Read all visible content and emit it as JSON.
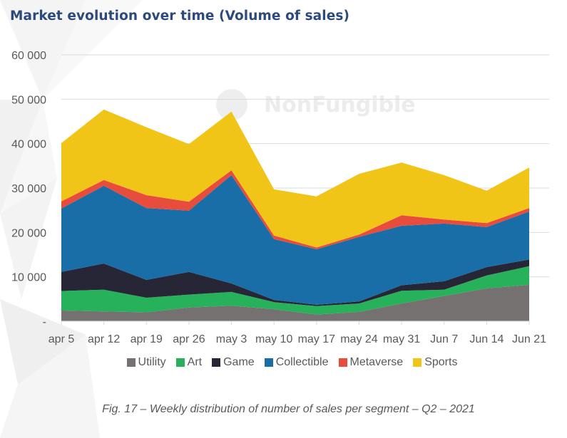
{
  "title": "Market evolution over time (Volume of sales)",
  "watermark": "NonFungible",
  "caption": "Fig. 17 – Weekly distribution of number of sales per segment – Q2 – 2021",
  "chart_data": {
    "type": "area",
    "stacked": true,
    "title": "Market evolution over time (Volume of sales)",
    "xlabel": "",
    "ylabel": "",
    "ylim": [
      0,
      60000
    ],
    "yticks": [
      0,
      10000,
      20000,
      30000,
      40000,
      50000,
      60000
    ],
    "ytick_labels": [
      "-",
      "10 000",
      "20 000",
      "30 000",
      "40 000",
      "50 000",
      "60 000"
    ],
    "grid": true,
    "legend_position": "bottom",
    "categories": [
      "apr 5",
      "apr 12",
      "apr 19",
      "apr 26",
      "may 3",
      "may 10",
      "may 17",
      "may 24",
      "may 31",
      "Jun 7",
      "Jun 14",
      "Jun 21"
    ],
    "series": [
      {
        "name": "Utility",
        "color": "#767171",
        "values": [
          2400,
          2200,
          2000,
          3100,
          3500,
          2700,
          1500,
          2100,
          4000,
          5700,
          7400,
          8200
        ]
      },
      {
        "name": "Art",
        "color": "#27b15a",
        "values": [
          4400,
          4900,
          3300,
          2900,
          3100,
          1600,
          1900,
          1900,
          2850,
          1400,
          2900,
          4200
        ]
      },
      {
        "name": "Game",
        "color": "#262636",
        "values": [
          4300,
          5900,
          4000,
          5100,
          1900,
          500,
          300,
          450,
          1250,
          1900,
          1900,
          1500
        ]
      },
      {
        "name": "Collectible",
        "color": "#1a6ea8",
        "values": [
          14300,
          17500,
          16200,
          13800,
          24400,
          13700,
          12500,
          14550,
          13400,
          13000,
          9000,
          10800
        ]
      },
      {
        "name": "Metaverse",
        "color": "#e84c3d",
        "values": [
          1600,
          1300,
          2900,
          2000,
          1100,
          800,
          400,
          500,
          2350,
          900,
          900,
          800
        ]
      },
      {
        "name": "Sports",
        "color": "#f1c418",
        "values": [
          13100,
          15900,
          15300,
          13000,
          13200,
          10400,
          11500,
          13700,
          11900,
          10000,
          7300,
          9100
        ]
      }
    ]
  }
}
